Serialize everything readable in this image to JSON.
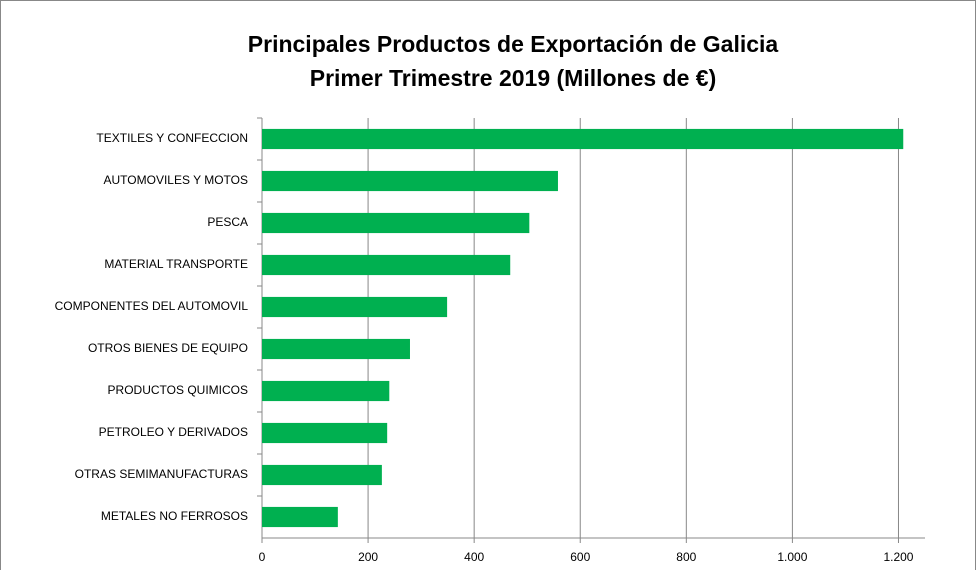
{
  "chart_data": {
    "type": "barh",
    "title": "Principales Productos de Exportación de Galicia",
    "subtitle": "Primer Trimestre 2019 (Millones de €)",
    "categories": [
      "TEXTILES Y CONFECCION",
      "AUTOMOVILES Y MOTOS",
      "PESCA",
      "MATERIAL TRANSPORTE",
      "COMPONENTES DEL AUTOMOVIL",
      "OTROS BIENES DE EQUIPO",
      "PRODUCTOS QUIMICOS",
      "PETROLEO Y DERIVADOS",
      "OTRAS SEMIMANUFACTURAS",
      "METALES NO FERROSOS"
    ],
    "values": [
      1209,
      558,
      504,
      468,
      349,
      279,
      240,
      236,
      226,
      143
    ],
    "color": "#00b050",
    "xlim": [
      0,
      1250
    ],
    "xticks": [
      0,
      200,
      400,
      600,
      800,
      {
        "value": 1000,
        "label": "1.000"
      },
      {
        "value": 1200,
        "label": "1.200"
      }
    ],
    "grid": true
  }
}
